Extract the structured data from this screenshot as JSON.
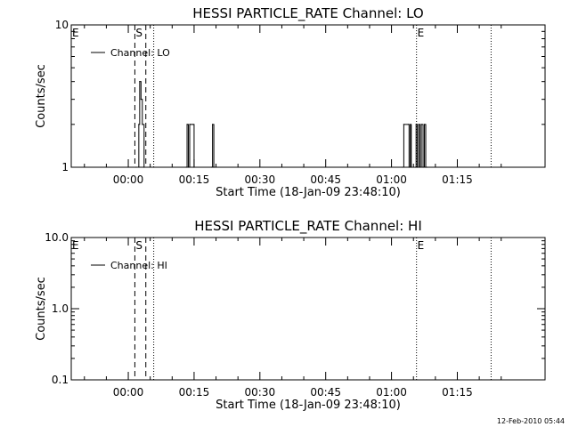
{
  "footer": {
    "timestamp": "12-Feb-2010 05:44"
  },
  "chart_data": [
    {
      "type": "line",
      "title": "HESSI PARTICLE_RATE Channel: LO",
      "xlabel": "Start Time (18-Jan-09 23:48:10)",
      "ylabel": "Counts/sec",
      "yscale": "log",
      "xlim": [
        -13.0,
        95.0
      ],
      "ylim": [
        1,
        10
      ],
      "x_tick_labels": [
        "00:00",
        "00:15",
        "00:30",
        "00:45",
        "01:00",
        "01:15"
      ],
      "x_tick_values": [
        0,
        15,
        30,
        45,
        60,
        75
      ],
      "y_tick_labels": [
        "1",
        "10"
      ],
      "y_tick_values": [
        1,
        10
      ],
      "legend": {
        "placement": "top-left",
        "entries": [
          "Channel: LO"
        ]
      },
      "grid": false,
      "markers": {
        "dashed_lines": [
          1.5,
          4.0
        ],
        "dotted_lines": [
          5.8,
          65.7,
          82.7
        ],
        "labels": [
          {
            "text": "E",
            "x": -13.0
          },
          {
            "text": "S",
            "x": 1.5
          },
          {
            "text": "E",
            "x": 65.7
          }
        ]
      },
      "series": [
        {
          "name": "Channel: LO",
          "x": [
            1.8,
            2.4,
            2.6,
            2.9,
            3.2,
            3.6,
            13.2,
            13.4,
            13.7,
            14.0,
            14.2,
            14.8,
            15.0,
            19.0,
            19.2,
            19.5,
            62.5,
            62.8,
            63.8,
            64.0,
            64.3,
            64.5,
            65.4,
            65.6,
            65.9,
            66.2,
            66.5,
            66.8,
            67.2,
            67.5,
            67.8,
            68.1
          ],
          "values": [
            1,
            2,
            4,
            3,
            2,
            1,
            1,
            2,
            1,
            2,
            2,
            2,
            1,
            1,
            2,
            1,
            1,
            2,
            2,
            1,
            2,
            1,
            1,
            2,
            1,
            2,
            1,
            2,
            1,
            2,
            1,
            1
          ]
        }
      ]
    },
    {
      "type": "line",
      "title": "HESSI PARTICLE_RATE Channel: HI",
      "xlabel": "Start Time (18-Jan-09 23:48:10)",
      "ylabel": "Counts/sec",
      "yscale": "log",
      "xlim": [
        -13.0,
        95.0
      ],
      "ylim": [
        0.1,
        10.0
      ],
      "x_tick_labels": [
        "00:00",
        "00:15",
        "00:30",
        "00:45",
        "01:00",
        "01:15"
      ],
      "x_tick_values": [
        0,
        15,
        30,
        45,
        60,
        75
      ],
      "y_tick_labels": [
        "0.1",
        "1.0",
        "10.0"
      ],
      "y_tick_values": [
        0.1,
        1.0,
        10.0
      ],
      "legend": {
        "placement": "top-left",
        "entries": [
          "Channel: HI"
        ]
      },
      "grid": false,
      "markers": {
        "dashed_lines": [
          1.5,
          4.0
        ],
        "dotted_lines": [
          5.8,
          65.7,
          82.7
        ],
        "labels": [
          {
            "text": "E",
            "x": -13.0
          },
          {
            "text": "S",
            "x": 1.5
          },
          {
            "text": "E",
            "x": 65.7
          }
        ]
      },
      "series": [
        {
          "name": "Channel: HI",
          "x": [],
          "values": []
        }
      ]
    }
  ]
}
